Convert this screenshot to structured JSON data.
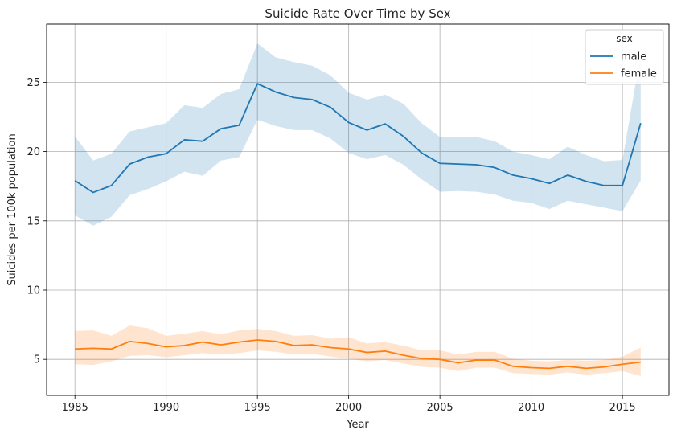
{
  "chart_data": {
    "type": "line",
    "title": "Suicide Rate Over Time by Sex",
    "xlabel": "Year",
    "ylabel": "Suicides per 100k population",
    "xlim": [
      1983.45,
      2017.55
    ],
    "ylim": [
      2.4,
      29.2
    ],
    "x_ticks": [
      1985,
      1990,
      1995,
      2000,
      2005,
      2010,
      2015
    ],
    "y_ticks": [
      5,
      10,
      15,
      20,
      25
    ],
    "grid": true,
    "legend": {
      "title": "sex",
      "position": "top-right"
    },
    "x": [
      1985,
      1986,
      1987,
      1988,
      1989,
      1990,
      1991,
      1992,
      1993,
      1994,
      1995,
      1996,
      1997,
      1998,
      1999,
      2000,
      2001,
      2002,
      2003,
      2004,
      2005,
      2006,
      2007,
      2008,
      2009,
      2010,
      2011,
      2012,
      2013,
      2014,
      2015,
      2016
    ],
    "series": [
      {
        "name": "male",
        "color": "#1f77b4",
        "values": [
          17.9,
          17.05,
          17.55,
          19.1,
          19.6,
          19.85,
          20.85,
          20.75,
          21.65,
          21.9,
          24.9,
          24.3,
          23.9,
          23.75,
          23.2,
          22.1,
          21.55,
          22.0,
          21.1,
          19.9,
          19.15,
          19.1,
          19.05,
          18.85,
          18.3,
          18.05,
          17.7,
          18.3,
          17.85,
          17.55,
          17.55,
          22.05
        ],
        "ci_low": [
          15.4,
          14.65,
          15.3,
          16.85,
          17.3,
          17.85,
          18.55,
          18.25,
          19.35,
          19.6,
          22.3,
          21.85,
          21.55,
          21.55,
          20.95,
          19.9,
          19.45,
          19.75,
          19.05,
          18.0,
          17.1,
          17.15,
          17.1,
          16.9,
          16.45,
          16.3,
          15.85,
          16.45,
          16.2,
          15.95,
          15.7,
          17.9
        ],
        "ci_high": [
          21.1,
          19.35,
          19.85,
          21.45,
          21.75,
          22.05,
          23.35,
          23.15,
          24.15,
          24.5,
          27.8,
          26.8,
          26.45,
          26.2,
          25.5,
          24.25,
          23.75,
          24.1,
          23.45,
          22.05,
          21.05,
          21.05,
          21.05,
          20.75,
          20.0,
          19.75,
          19.45,
          20.35,
          19.75,
          19.3,
          19.4,
          27.0
        ]
      },
      {
        "name": "female",
        "color": "#ff7f0e",
        "values": [
          5.75,
          5.8,
          5.75,
          6.3,
          6.15,
          5.9,
          6.0,
          6.25,
          6.05,
          6.25,
          6.4,
          6.3,
          6.0,
          6.05,
          5.85,
          5.75,
          5.5,
          5.6,
          5.3,
          5.05,
          5.0,
          4.75,
          4.95,
          4.95,
          4.5,
          4.4,
          4.35,
          4.5,
          4.35,
          4.45,
          4.65,
          4.8
        ],
        "ci_low": [
          4.65,
          4.6,
          4.85,
          5.25,
          5.3,
          5.15,
          5.3,
          5.45,
          5.35,
          5.45,
          5.65,
          5.55,
          5.35,
          5.4,
          5.2,
          5.05,
          4.85,
          4.95,
          4.7,
          4.45,
          4.4,
          4.15,
          4.4,
          4.4,
          4.0,
          3.95,
          3.9,
          4.05,
          3.9,
          4.0,
          4.15,
          3.8
        ],
        "ci_high": [
          7.05,
          7.1,
          6.7,
          7.45,
          7.25,
          6.7,
          6.85,
          7.05,
          6.8,
          7.1,
          7.2,
          7.05,
          6.7,
          6.75,
          6.5,
          6.6,
          6.15,
          6.25,
          6.0,
          5.65,
          5.65,
          5.35,
          5.55,
          5.55,
          5.05,
          4.9,
          4.85,
          4.95,
          4.9,
          4.95,
          5.2,
          5.85
        ]
      }
    ]
  }
}
